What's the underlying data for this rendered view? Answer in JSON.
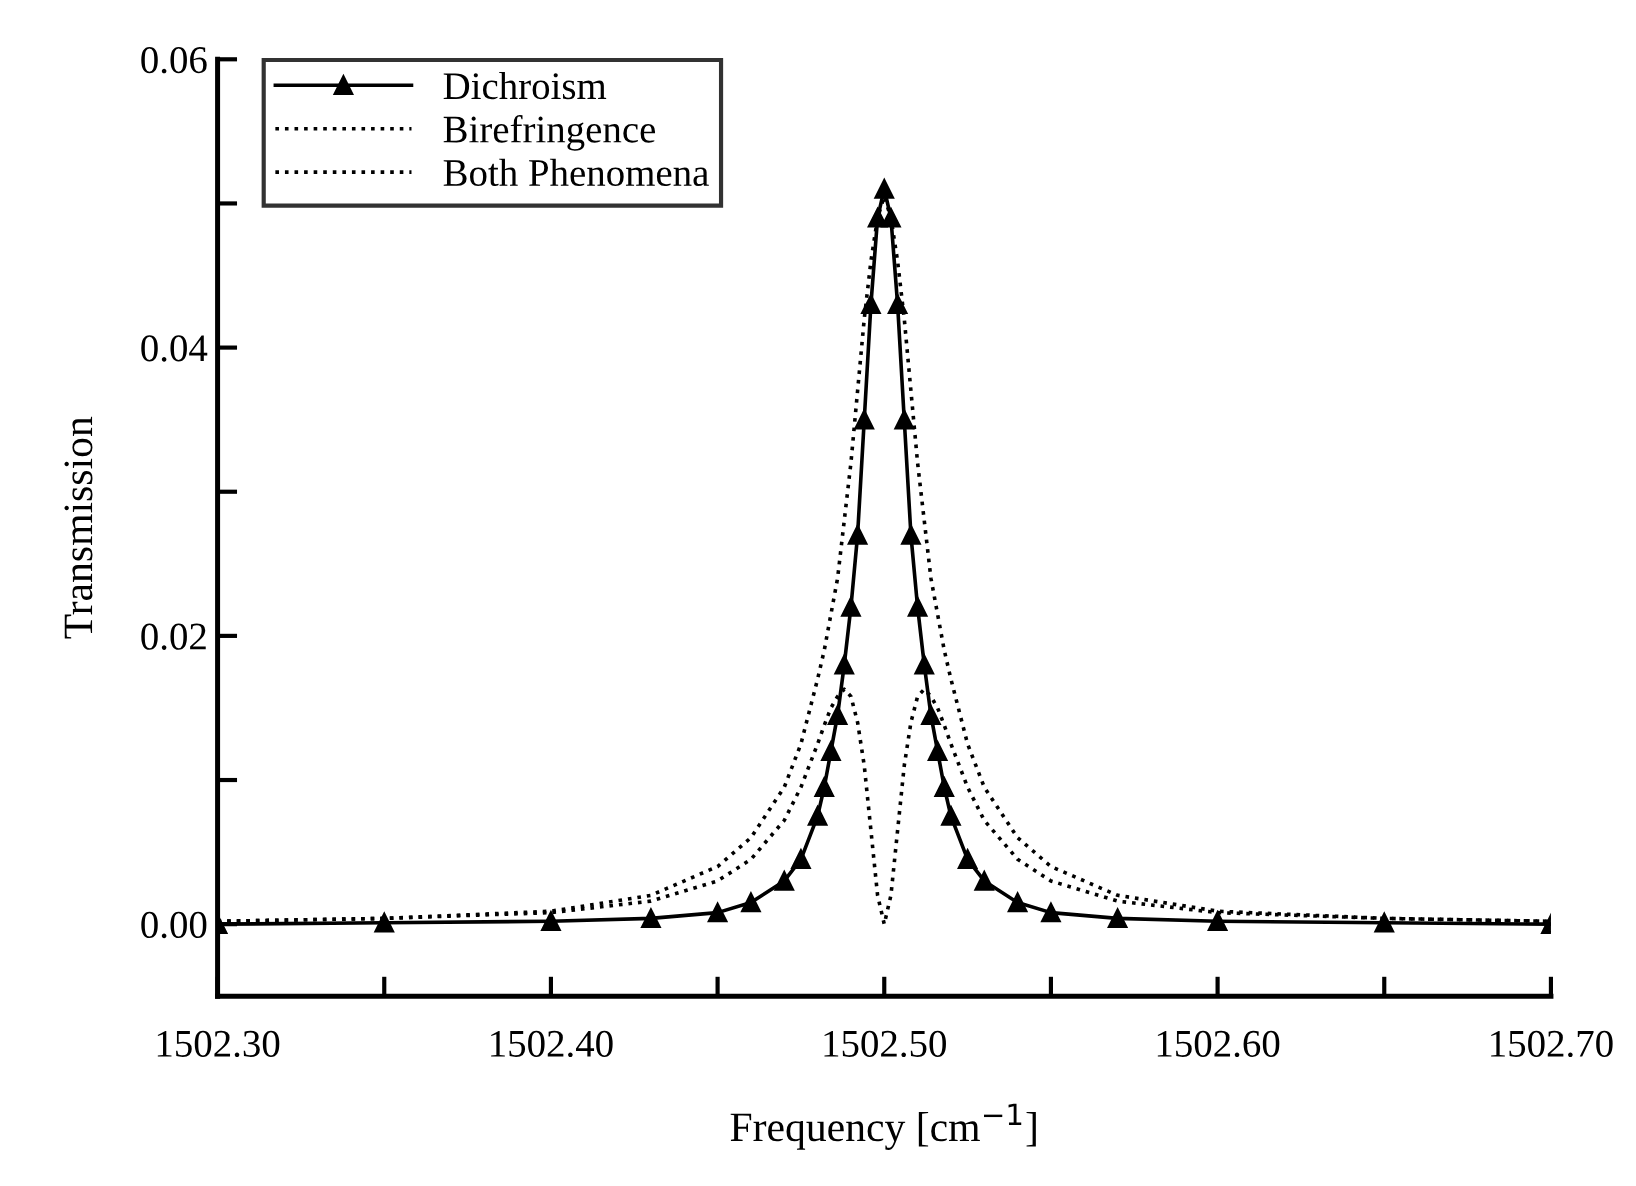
{
  "chart_data": {
    "type": "line",
    "xlabel": "Frequency [cm$^{−1}$]",
    "ylabel": "Transmission",
    "x": [
      1502.3,
      1502.35,
      1502.4,
      1502.43,
      1502.45,
      1502.46,
      1502.47,
      1502.475,
      1502.48,
      1502.482,
      1502.484,
      1502.486,
      1502.488,
      1502.49,
      1502.492,
      1502.494,
      1502.496,
      1502.498,
      1502.5,
      1502.502,
      1502.504,
      1502.506,
      1502.508,
      1502.51,
      1502.512,
      1502.514,
      1502.516,
      1502.518,
      1502.52,
      1502.525,
      1502.53,
      1502.54,
      1502.55,
      1502.57,
      1502.6,
      1502.65,
      1502.7
    ],
    "series": [
      {
        "name": "Dichroism",
        "color": "#000000",
        "marker": "triangle",
        "line_style": "solid",
        "values": [
          0,
          0.0001,
          0.0002,
          0.0004,
          0.0008,
          0.0015,
          0.003,
          0.0045,
          0.0075,
          0.0095,
          0.012,
          0.0145,
          0.018,
          0.022,
          0.027,
          0.035,
          0.043,
          0.049,
          0.051,
          0.049,
          0.043,
          0.035,
          0.027,
          0.022,
          0.018,
          0.0145,
          0.012,
          0.0095,
          0.0075,
          0.0045,
          0.003,
          0.0015,
          0.0008,
          0.0004,
          0.0002,
          0.0001,
          0
        ]
      },
      {
        "name": "Birefringence",
        "color": "#000000",
        "marker": "none",
        "line_style": "dotted",
        "values": [
          0.0002,
          0.0004,
          0.0008,
          0.0016,
          0.003,
          0.0045,
          0.0072,
          0.0095,
          0.0125,
          0.0138,
          0.015,
          0.0158,
          0.0163,
          0.0158,
          0.014,
          0.011,
          0.0065,
          0.002,
          0,
          0.002,
          0.0065,
          0.011,
          0.014,
          0.0158,
          0.0163,
          0.0158,
          0.015,
          0.0138,
          0.0125,
          0.0095,
          0.0072,
          0.0045,
          0.003,
          0.0016,
          0.0008,
          0.0004,
          0.0002
        ]
      },
      {
        "name": "Both Phenomena",
        "color": "#000000",
        "marker": "none",
        "line_style": "dotted",
        "values": [
          0.0002,
          0.0004,
          0.0009,
          0.002,
          0.004,
          0.006,
          0.0095,
          0.0125,
          0.017,
          0.019,
          0.0215,
          0.024,
          0.028,
          0.032,
          0.037,
          0.042,
          0.046,
          0.049,
          0.0505,
          0.049,
          0.046,
          0.042,
          0.037,
          0.032,
          0.028,
          0.024,
          0.0215,
          0.019,
          0.017,
          0.0125,
          0.0095,
          0.006,
          0.004,
          0.002,
          0.0009,
          0.0004,
          0.0002
        ]
      }
    ],
    "xlim": [
      1502.3,
      1502.7
    ],
    "xticks": [
      {
        "value": 1502.3,
        "label": "1502.30"
      },
      {
        "value": 1502.35,
        "label": null
      },
      {
        "value": 1502.4,
        "label": "1502.40"
      },
      {
        "value": 1502.45,
        "label": null
      },
      {
        "value": 1502.5,
        "label": "1502.50"
      },
      {
        "value": 1502.55,
        "label": null
      },
      {
        "value": 1502.6,
        "label": "1502.60"
      },
      {
        "value": 1502.65,
        "label": null
      },
      {
        "value": 1502.7,
        "label": "1502.70"
      }
    ],
    "ylim": [
      -0.005,
      0.06
    ],
    "yticks": [
      {
        "value": 0,
        "label": "0.00"
      },
      {
        "value": 0.01,
        "label": null
      },
      {
        "value": 0.02,
        "label": "0.02"
      },
      {
        "value": 0.03,
        "label": null
      },
      {
        "value": 0.04,
        "label": "0.04"
      },
      {
        "value": 0.05,
        "label": null
      },
      {
        "value": 0.06,
        "label": "0.06"
      }
    ],
    "grid": false,
    "legend": "top left"
  }
}
